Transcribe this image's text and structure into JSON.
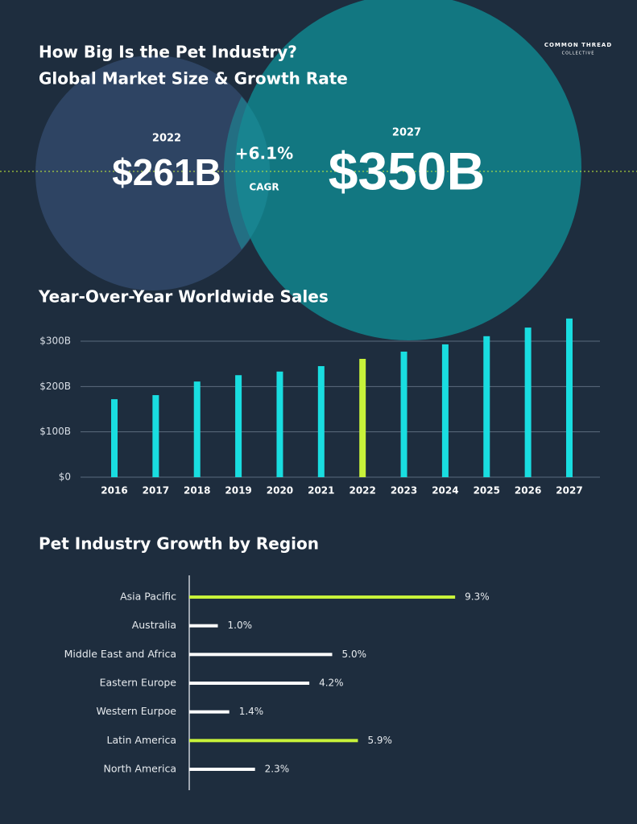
{
  "header": {
    "title_line1": "How Big Is the Pet Industry?",
    "title_line2": "Global Market Size & Growth Rate",
    "logo_top": "COMMON THREAD",
    "logo_bottom": "COLLECTIVE",
    "year_start": "2022",
    "value_start": "$261B",
    "growth": "+6.1%",
    "growth_label": "CAGR",
    "year_end": "2027",
    "value_end": "$350B"
  },
  "chart_data": [
    {
      "type": "bar",
      "title": "Year-Over-Year Worldwide Sales",
      "categories": [
        "2016",
        "2017",
        "2018",
        "2019",
        "2020",
        "2021",
        "2022",
        "2023",
        "2024",
        "2025",
        "2026",
        "2027"
      ],
      "values": [
        172,
        181,
        211,
        225,
        233,
        245,
        261,
        277,
        293,
        311,
        330,
        350
      ],
      "colors": [
        "#19dde0",
        "#19dde0",
        "#19dde0",
        "#19dde0",
        "#19dde0",
        "#19dde0",
        "#c8f23a",
        "#19dde0",
        "#19dde0",
        "#19dde0",
        "#19dde0",
        "#19dde0"
      ],
      "ylim": [
        0,
        360
      ],
      "yticks": [
        {
          "value": 0,
          "label": "$0"
        },
        {
          "value": 100,
          "label": "$100B"
        },
        {
          "value": 200,
          "label": "$200B"
        },
        {
          "value": 300,
          "label": "$300B"
        }
      ],
      "grid": true
    },
    {
      "type": "hbar",
      "title": "Pet Industry Growth by Region",
      "categories": [
        "Asia Pacific",
        "Australia",
        "Middle East and Africa",
        "Eastern Europe",
        "Western Eurpoe",
        "Latin America",
        "North America"
      ],
      "values": [
        9.3,
        1.0,
        5.0,
        4.2,
        1.4,
        5.9,
        2.3
      ],
      "value_labels": [
        "9.3%",
        "1.0%",
        "5.0%",
        "4.2%",
        "1.4%",
        "5.9%",
        "2.3%"
      ],
      "colors": [
        "#c8f23a",
        "#ffffff",
        "#ffffff",
        "#ffffff",
        "#ffffff",
        "#c8f23a",
        "#ffffff"
      ],
      "xlim": [
        0,
        10
      ]
    }
  ]
}
